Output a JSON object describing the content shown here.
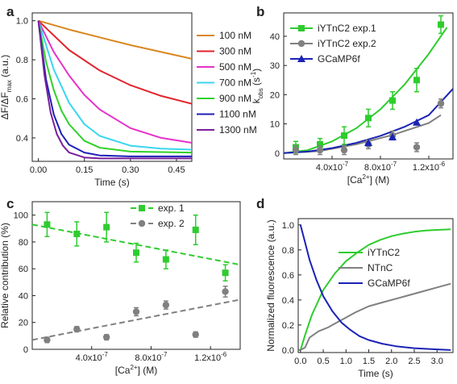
{
  "figure": {
    "panel_labels": [
      "a",
      "b",
      "c",
      "d"
    ]
  },
  "chart_data": [
    {
      "panel": "a",
      "type": "line",
      "xlabel": "Time (s)",
      "ylabel": "ΔF/ΔF_max (a.u.)",
      "xlim": [
        -0.02,
        0.5
      ],
      "ylim": [
        0.28,
        1.04
      ],
      "xticks": [
        0.0,
        0.15,
        0.3,
        0.45
      ],
      "xtick_labels": [
        "0.00",
        "0.15",
        "0.30",
        "0.45"
      ],
      "yticks": [
        0.4,
        0.6,
        0.8,
        1.0
      ],
      "ytick_labels": [
        "0.4",
        "0.6",
        "0.8",
        "1.0"
      ],
      "legend_position": "right",
      "series": [
        {
          "name": "100 nM",
          "color": "#d9861e",
          "x": [
            0,
            0.1,
            0.2,
            0.3,
            0.4,
            0.5
          ],
          "y": [
            1.0,
            0.955,
            0.915,
            0.875,
            0.84,
            0.805
          ]
        },
        {
          "name": "300 nM",
          "color": "#e2232c",
          "x": [
            0,
            0.1,
            0.2,
            0.3,
            0.4,
            0.5
          ],
          "y": [
            1.0,
            0.85,
            0.745,
            0.67,
            0.615,
            0.575
          ]
        },
        {
          "name": "500 nM",
          "color": "#e631c7",
          "x": [
            0,
            0.05,
            0.1,
            0.15,
            0.2,
            0.3,
            0.4,
            0.5
          ],
          "y": [
            1.0,
            0.84,
            0.72,
            0.62,
            0.545,
            0.45,
            0.4,
            0.375
          ]
        },
        {
          "name": "700 nM",
          "color": "#3ad6f0",
          "x": [
            0,
            0.05,
            0.1,
            0.15,
            0.2,
            0.3,
            0.4,
            0.5
          ],
          "y": [
            1.0,
            0.75,
            0.58,
            0.47,
            0.41,
            0.36,
            0.345,
            0.34
          ]
        },
        {
          "name": "900 nM",
          "color": "#2fd12a",
          "x": [
            0,
            0.025,
            0.05,
            0.075,
            0.1,
            0.15,
            0.2,
            0.3,
            0.5
          ],
          "y": [
            1.0,
            0.79,
            0.645,
            0.54,
            0.47,
            0.385,
            0.35,
            0.33,
            0.325
          ]
        },
        {
          "name": "1100 nM",
          "color": "#1f1fb8",
          "x": [
            0,
            0.025,
            0.05,
            0.075,
            0.1,
            0.15,
            0.2,
            0.3,
            0.5
          ],
          "y": [
            1.0,
            0.7,
            0.52,
            0.42,
            0.365,
            0.325,
            0.31,
            0.305,
            0.305
          ]
        },
        {
          "name": "1300 nM",
          "color": "#7a1f9c",
          "x": [
            0,
            0.02,
            0.04,
            0.06,
            0.08,
            0.1,
            0.15,
            0.2,
            0.3,
            0.5
          ],
          "y": [
            1.0,
            0.72,
            0.53,
            0.42,
            0.36,
            0.325,
            0.3,
            0.295,
            0.295,
            0.295
          ]
        }
      ]
    },
    {
      "panel": "b",
      "type": "scatter",
      "xlabel": "[Ca2+] (M)",
      "ylabel": "k_obs (s^-1)",
      "xlim": [
        0,
        1.4e-06
      ],
      "ylim": [
        -2,
        48
      ],
      "xticks": [
        4e-07,
        8e-07,
        1.2e-06
      ],
      "xtick_labels": [
        "4.0x10^-7",
        "8.0x10^-7",
        "1.2x10^-6"
      ],
      "yticks": [
        0,
        10,
        20,
        30,
        40
      ],
      "ytick_labels": [
        "0",
        "10",
        "20",
        "30",
        "40"
      ],
      "legend_position": "top-left",
      "series": [
        {
          "name": "iYTnC2 exp.1",
          "color": "#2ecc2e",
          "marker": "square",
          "x": [
            1e-07,
            3e-07,
            5e-07,
            7e-07,
            9e-07,
            1.1e-06,
            1.3e-06
          ],
          "y": [
            2,
            3,
            6,
            12,
            18,
            25,
            44
          ],
          "err": [
            2,
            2,
            3,
            3,
            3,
            4,
            3
          ],
          "fit_x": [
            0,
            2e-07,
            4e-07,
            6e-07,
            8e-07,
            1e-06,
            1.2e-06,
            1.35e-06
          ],
          "fit_y": [
            0,
            1,
            4,
            8.5,
            15,
            23.5,
            34,
            43
          ]
        },
        {
          "name": "iYTnC2 exp.2",
          "color": "#808080",
          "marker": "circle",
          "x": [
            1e-07,
            3e-07,
            5e-07,
            7e-07,
            9e-07,
            1.1e-06,
            1.3e-06
          ],
          "y": [
            1,
            1,
            1,
            3,
            6,
            2,
            17
          ],
          "err": [
            1.5,
            1.5,
            1.5,
            1.5,
            1.5,
            1.5,
            1.5
          ],
          "fit_x": [
            0,
            3e-07,
            6e-07,
            9e-07,
            1.2e-06,
            1.3e-06
          ],
          "fit_y": [
            0,
            0.7,
            3,
            6.2,
            10.3,
            13
          ]
        },
        {
          "name": "GCaMP6f",
          "color": "#1a23b5",
          "marker": "triangle",
          "x": [
            7e-07,
            9e-07,
            1.1e-06
          ],
          "y": [
            3.5,
            5.5,
            10.5
          ],
          "err": [
            0,
            0,
            0
          ],
          "fit_x": [
            0,
            2e-07,
            4e-07,
            6e-07,
            8e-07,
            1e-06,
            1.2e-06,
            1.4e-06
          ],
          "fit_y": [
            0,
            0.5,
            1.7,
            3.5,
            5.9,
            9,
            13,
            22
          ]
        }
      ]
    },
    {
      "panel": "c",
      "type": "scatter",
      "xlabel": "[Ca2+] (M)",
      "ylabel": "Relative contribution (%)",
      "xlim": [
        0,
        1.4e-06
      ],
      "ylim": [
        0,
        110
      ],
      "xticks": [
        4e-07,
        8e-07,
        1.2e-06
      ],
      "xtick_labels": [
        "4.0x10^-7",
        "8.0x10^-7",
        "1.2x10^-6"
      ],
      "yticks": [
        0,
        20,
        40,
        60,
        80,
        100
      ],
      "ytick_labels": [
        "0",
        "20",
        "40",
        "60",
        "80",
        "100"
      ],
      "legend_position": "top-right",
      "series": [
        {
          "name": "exp. 1",
          "color": "#2ecc2e",
          "marker": "square",
          "x": [
            1e-07,
            3e-07,
            5e-07,
            7e-07,
            9e-07,
            1.1e-06,
            1.3e-06
          ],
          "y": [
            93,
            86,
            91,
            72,
            67,
            89,
            57
          ],
          "err": [
            9,
            9,
            11,
            7,
            7,
            11,
            6
          ],
          "fit_x": [
            0,
            1.4e-06
          ],
          "fit_y": [
            93,
            63
          ]
        },
        {
          "name": "exp. 2",
          "color": "#808080",
          "marker": "circle",
          "x": [
            1e-07,
            3e-07,
            5e-07,
            7e-07,
            9e-07,
            1.1e-06,
            1.3e-06
          ],
          "y": [
            7,
            15,
            9,
            28,
            33,
            11,
            43
          ],
          "err": [
            2,
            2,
            2,
            3,
            3,
            2,
            4
          ],
          "fit_x": [
            0,
            1.4e-06
          ],
          "fit_y": [
            7,
            37
          ]
        }
      ]
    },
    {
      "panel": "d",
      "type": "line",
      "xlabel": "Time (s)",
      "ylabel": "Normalized fluorescence (a.u.)",
      "xlim": [
        -0.05,
        3.35
      ],
      "ylim": [
        -0.02,
        1.05
      ],
      "xticks": [
        0.0,
        0.5,
        1.0,
        1.5,
        2.0,
        2.5,
        3.0
      ],
      "xtick_labels": [
        "0.0",
        "0.5",
        "1.0",
        "1.5",
        "2.0",
        "2.5",
        "3.0"
      ],
      "yticks": [
        0.0,
        0.2,
        0.4,
        0.6,
        0.8,
        1.0
      ],
      "ytick_labels": [
        "0.0",
        "0.2",
        "0.4",
        "0.6",
        "0.8",
        "1.0"
      ],
      "legend_position": "right",
      "series": [
        {
          "name": "iYTnC2",
          "color": "#2ecc2e",
          "x": [
            0,
            0.1,
            0.25,
            0.5,
            0.75,
            1.0,
            1.25,
            1.5,
            1.75,
            2.0,
            2.25,
            2.5,
            2.75,
            3.0,
            3.3
          ],
          "y": [
            0,
            0.12,
            0.28,
            0.48,
            0.61,
            0.71,
            0.78,
            0.84,
            0.88,
            0.91,
            0.93,
            0.945,
            0.955,
            0.96,
            0.965
          ]
        },
        {
          "name": "NTnC",
          "color": "#808080",
          "x": [
            0,
            0.1,
            0.2,
            0.4,
            0.6,
            0.8,
            1.0,
            1.2,
            1.5,
            1.8,
            2.1,
            2.4,
            2.7,
            3.0,
            3.3
          ],
          "y": [
            0,
            0.02,
            0.1,
            0.15,
            0.18,
            0.22,
            0.26,
            0.3,
            0.35,
            0.38,
            0.41,
            0.44,
            0.47,
            0.5,
            0.53
          ]
        },
        {
          "name": "GCaMP6f",
          "color": "#1a23b5",
          "x": [
            0,
            0.1,
            0.2,
            0.35,
            0.5,
            0.7,
            0.9,
            1.1,
            1.3,
            1.5,
            1.8,
            2.1,
            2.5,
            3.0,
            3.3
          ],
          "y": [
            1.0,
            0.86,
            0.72,
            0.56,
            0.43,
            0.31,
            0.22,
            0.16,
            0.11,
            0.08,
            0.05,
            0.03,
            0.015,
            0.005,
            0.0
          ]
        }
      ]
    }
  ]
}
